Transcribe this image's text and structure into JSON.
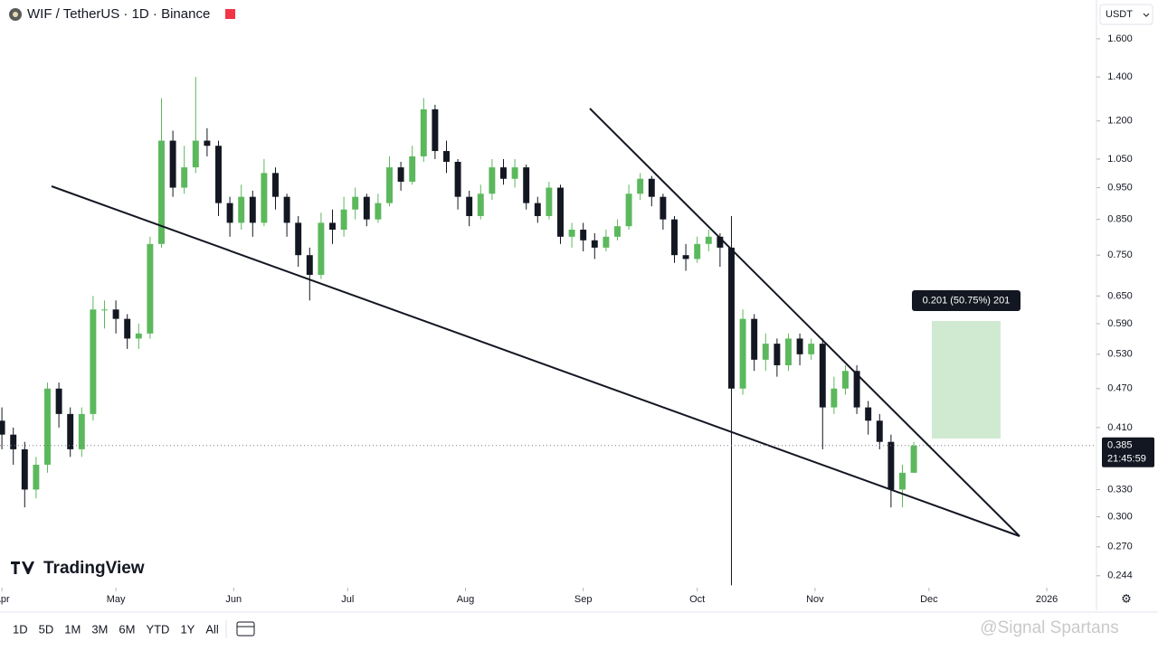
{
  "header": {
    "symbol_title": "WIF / TetherUS · 1D · Binance",
    "currency": "USDT"
  },
  "chart_data": {
    "type": "candlestick",
    "x": [
      0,
      3,
      6,
      9,
      12,
      15,
      18,
      21,
      24,
      27,
      30,
      33,
      36,
      39,
      42,
      45,
      48,
      51,
      54,
      57,
      60,
      63,
      66,
      69,
      72,
      75,
      78,
      81,
      84,
      87,
      90,
      93,
      96,
      99,
      102,
      105,
      108,
      111,
      114,
      117,
      120,
      123,
      126,
      129,
      132,
      135,
      138,
      141,
      144,
      147,
      150,
      153,
      156,
      159,
      162,
      165,
      168,
      171,
      174,
      177,
      180,
      183,
      186,
      189,
      192,
      195,
      198,
      201,
      204,
      207,
      210,
      213,
      216,
      219,
      222,
      225,
      228,
      231,
      234,
      237,
      240
    ],
    "open": [
      0.42,
      0.4,
      0.38,
      0.33,
      0.36,
      0.47,
      0.43,
      0.38,
      0.43,
      0.62,
      0.62,
      0.6,
      0.56,
      0.57,
      0.78,
      1.12,
      0.95,
      1.02,
      1.12,
      1.1,
      0.9,
      0.84,
      0.92,
      0.84,
      1.0,
      0.92,
      0.84,
      0.75,
      0.7,
      0.84,
      0.82,
      0.88,
      0.92,
      0.85,
      0.9,
      1.02,
      0.97,
      1.06,
      1.25,
      1.08,
      1.04,
      0.92,
      0.86,
      0.93,
      1.02,
      0.98,
      1.02,
      0.9,
      0.86,
      0.95,
      0.8,
      0.82,
      0.79,
      0.77,
      0.8,
      0.83,
      0.93,
      0.98,
      0.92,
      0.85,
      0.75,
      0.74,
      0.78,
      0.8,
      0.77,
      0.47,
      0.6,
      0.52,
      0.55,
      0.51,
      0.56,
      0.53,
      0.55,
      0.44,
      0.47,
      0.5,
      0.44,
      0.42,
      0.39,
      0.33,
      0.35
    ],
    "high": [
      0.44,
      0.41,
      0.39,
      0.37,
      0.48,
      0.48,
      0.44,
      0.44,
      0.65,
      0.64,
      0.64,
      0.61,
      0.59,
      0.8,
      1.3,
      1.16,
      1.1,
      1.4,
      1.17,
      1.12,
      0.92,
      0.96,
      0.94,
      1.05,
      1.02,
      0.93,
      0.86,
      0.77,
      0.87,
      0.88,
      0.92,
      0.95,
      0.93,
      0.93,
      1.06,
      1.04,
      1.1,
      1.3,
      1.27,
      1.12,
      1.05,
      0.94,
      0.96,
      1.05,
      1.05,
      1.05,
      1.03,
      0.92,
      0.97,
      0.96,
      0.84,
      0.84,
      0.81,
      0.82,
      0.85,
      0.96,
      1.0,
      0.99,
      0.93,
      0.86,
      0.78,
      0.8,
      0.82,
      0.81,
      0.86,
      0.62,
      0.61,
      0.57,
      0.56,
      0.57,
      0.57,
      0.56,
      0.56,
      0.49,
      0.51,
      0.51,
      0.45,
      0.43,
      0.4,
      0.36,
      0.39
    ],
    "low": [
      0.38,
      0.36,
      0.31,
      0.32,
      0.35,
      0.41,
      0.37,
      0.37,
      0.42,
      0.58,
      0.57,
      0.54,
      0.54,
      0.56,
      0.77,
      0.92,
      0.93,
      1.0,
      1.06,
      0.86,
      0.8,
      0.82,
      0.8,
      0.83,
      0.88,
      0.8,
      0.72,
      0.64,
      0.69,
      0.78,
      0.8,
      0.85,
      0.83,
      0.84,
      0.89,
      0.94,
      0.96,
      1.04,
      1.05,
      1.0,
      0.88,
      0.83,
      0.85,
      0.91,
      0.96,
      0.95,
      0.88,
      0.84,
      0.85,
      0.78,
      0.77,
      0.76,
      0.74,
      0.76,
      0.79,
      0.82,
      0.91,
      0.89,
      0.82,
      0.73,
      0.71,
      0.73,
      0.76,
      0.72,
      0.236,
      0.46,
      0.5,
      0.5,
      0.49,
      0.5,
      0.51,
      0.52,
      0.38,
      0.43,
      0.46,
      0.43,
      0.4,
      0.38,
      0.31,
      0.31,
      0.35
    ],
    "close": [
      0.4,
      0.38,
      0.33,
      0.36,
      0.47,
      0.43,
      0.38,
      0.43,
      0.62,
      0.62,
      0.6,
      0.56,
      0.57,
      0.78,
      1.12,
      0.95,
      1.02,
      1.12,
      1.1,
      0.9,
      0.84,
      0.92,
      0.84,
      1.0,
      0.92,
      0.84,
      0.75,
      0.7,
      0.84,
      0.82,
      0.88,
      0.92,
      0.85,
      0.9,
      1.02,
      0.97,
      1.06,
      1.25,
      1.08,
      1.04,
      0.92,
      0.86,
      0.93,
      1.02,
      0.98,
      1.02,
      0.9,
      0.86,
      0.95,
      0.8,
      0.82,
      0.79,
      0.77,
      0.8,
      0.83,
      0.93,
      0.98,
      0.92,
      0.85,
      0.75,
      0.74,
      0.78,
      0.8,
      0.77,
      0.47,
      0.6,
      0.52,
      0.55,
      0.51,
      0.56,
      0.53,
      0.55,
      0.44,
      0.47,
      0.5,
      0.44,
      0.42,
      0.39,
      0.33,
      0.35,
      0.385
    ],
    "up_color": "#5cb85c",
    "down_color": "#131722",
    "xlim": [
      -0.5,
      287.6
    ],
    "xticks": [
      {
        "value": 0,
        "label": "Apr"
      },
      {
        "value": 30,
        "label": "May"
      },
      {
        "value": 61,
        "label": "Jun"
      },
      {
        "value": 91,
        "label": "Jul"
      },
      {
        "value": 122,
        "label": "Aug"
      },
      {
        "value": 153,
        "label": "Sep"
      },
      {
        "value": 183,
        "label": "Oct"
      },
      {
        "value": 214,
        "label": "Nov"
      },
      {
        "value": 244,
        "label": "Dec"
      },
      {
        "value": 275,
        "label": "2026"
      }
    ],
    "ylim": [
      0.234,
      1.833
    ],
    "log_scale": true,
    "yticks": [
      {
        "value": 1.6,
        "label": "1.600"
      },
      {
        "value": 1.4,
        "label": "1.400"
      },
      {
        "value": 1.2,
        "label": "1.200"
      },
      {
        "value": 1.05,
        "label": "1.050"
      },
      {
        "value": 0.95,
        "label": "0.950"
      },
      {
        "value": 0.85,
        "label": "0.850"
      },
      {
        "value": 0.75,
        "label": "0.750"
      },
      {
        "value": 0.65,
        "label": "0.650"
      },
      {
        "value": 0.59,
        "label": "0.590"
      },
      {
        "value": 0.53,
        "label": "0.530"
      },
      {
        "value": 0.47,
        "label": "0.470"
      },
      {
        "value": 0.41,
        "label": "0.410"
      },
      {
        "value": 0.33,
        "label": "0.330"
      },
      {
        "value": 0.3,
        "label": "0.300"
      },
      {
        "value": 0.27,
        "label": "0.270"
      },
      {
        "value": 0.244,
        "label": "0.244"
      }
    ],
    "last_price": 0.385,
    "countdown": "21:45:59",
    "measure_label": "0.201 (50.75%) 201"
  },
  "branding": "TradingView",
  "toolbar": {
    "ranges": [
      "1D",
      "5D",
      "1M",
      "3M",
      "6M",
      "YTD",
      "1Y",
      "All"
    ]
  },
  "watermark": "@Signal Spartans"
}
